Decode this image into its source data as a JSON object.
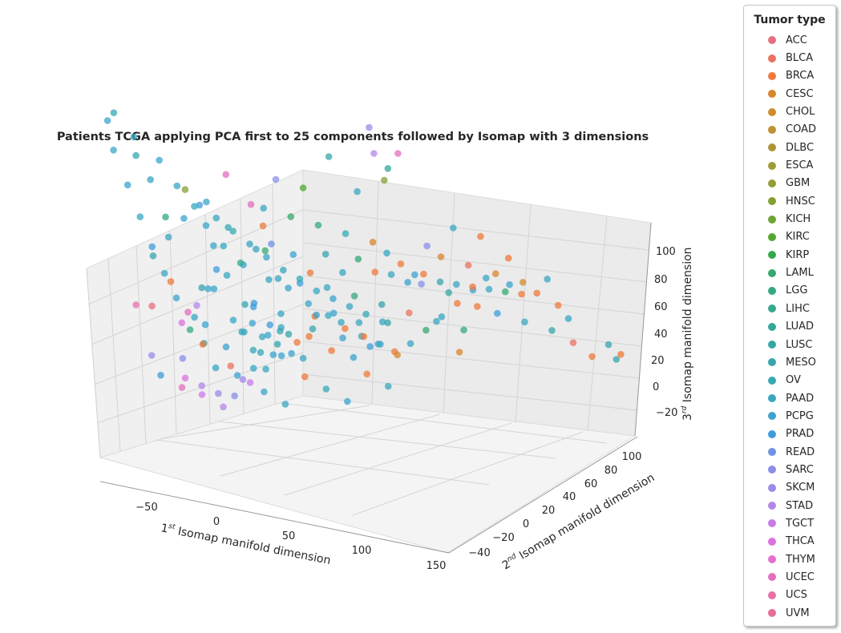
{
  "chart_data": {
    "type": "scatter",
    "projection": "3d",
    "title": "Patients TCGA applying PCA first to 25 components followed by Isomap with 3 dimensions",
    "xlabel": {
      "prefix": "1",
      "sup": "st",
      "rest": " Isomap manifold dimension"
    },
    "ylabel": {
      "prefix": "2",
      "sup": "nd",
      "rest": " Isomap manifold dimension"
    },
    "zlabel": {
      "prefix": "3",
      "sup": "rd",
      "rest": " Isomap manifold dimension"
    },
    "x_ticks": [
      "−50",
      "0",
      "50",
      "100",
      "150"
    ],
    "y_ticks": [
      "−40",
      "−20",
      "0",
      "20",
      "40",
      "60",
      "80",
      "100"
    ],
    "z_ticks": [
      "−20",
      "0",
      "20",
      "40",
      "60",
      "80",
      "100"
    ],
    "xlim": [
      -80,
      150
    ],
    "ylim": [
      -45,
      110
    ],
    "zlim": [
      -30,
      110
    ],
    "legend": {
      "title": "Tumor type",
      "entries": [
        "ACC",
        "BLCA",
        "BRCA",
        "CESC",
        "CHOL",
        "COAD",
        "DLBC",
        "ESCA",
        "GBM",
        "HNSC",
        "KICH",
        "KIRC",
        "KIRP",
        "LAML",
        "LGG",
        "LIHC",
        "LUAD",
        "LUSC",
        "MESO",
        "OV",
        "PAAD",
        "PCPG",
        "PRAD",
        "READ",
        "SARC",
        "SKCM",
        "STAD",
        "TGCT",
        "THCA",
        "THYM",
        "UCEC",
        "UCS",
        "UVM"
      ]
    },
    "colors": [
      "#e8707e",
      "#eb735f",
      "#ef7a3a",
      "#d9862f",
      "#d08c2f",
      "#bf9133",
      "#b09534",
      "#a19d36",
      "#949d33",
      "#84a032",
      "#6fa434",
      "#52a82f",
      "#35a84d",
      "#35a96f",
      "#34a97f",
      "#34a98f",
      "#33a79a",
      "#35a8a4",
      "#37a6ad",
      "#37a9b6",
      "#39a7c2",
      "#3ba4cf",
      "#3e9edc",
      "#6d92e5",
      "#8a8fe9",
      "#9e8aea",
      "#b487e9",
      "#cb7be8",
      "#dc72df",
      "#e36fd0",
      "#e66ebe",
      "#e86ea8",
      "#e76f96"
    ],
    "points": [
      [
        -62,
        -20,
        10,
        0
      ],
      [
        -50,
        -18,
        20,
        2
      ],
      [
        -45,
        -10,
        0,
        14
      ],
      [
        -40,
        -5,
        15,
        18
      ],
      [
        -35,
        0,
        30,
        20
      ],
      [
        -30,
        -15,
        5,
        21
      ],
      [
        -25,
        -10,
        25,
        22
      ],
      [
        -20,
        -5,
        40,
        19
      ],
      [
        -15,
        0,
        10,
        18
      ],
      [
        -10,
        5,
        30,
        20
      ],
      [
        -5,
        -20,
        -10,
        21
      ],
      [
        0,
        -10,
        15,
        22
      ],
      [
        5,
        0,
        35,
        23
      ],
      [
        10,
        5,
        0,
        18
      ],
      [
        15,
        10,
        20,
        19
      ],
      [
        -55,
        -25,
        60,
        20
      ],
      [
        -60,
        -30,
        70,
        18
      ],
      [
        -50,
        -20,
        45,
        14
      ],
      [
        -40,
        -15,
        55,
        9
      ],
      [
        -30,
        -10,
        50,
        20
      ],
      [
        -20,
        -5,
        60,
        30
      ],
      [
        -10,
        -30,
        25,
        21
      ],
      [
        -5,
        -25,
        -5,
        1
      ],
      [
        -15,
        -35,
        5,
        2
      ],
      [
        -25,
        -40,
        0,
        24
      ],
      [
        -35,
        -30,
        -15,
        30
      ],
      [
        -45,
        -35,
        -10,
        22
      ],
      [
        -55,
        -30,
        -5,
        25
      ],
      [
        -60,
        -35,
        15,
        31
      ],
      [
        20,
        15,
        5,
        2
      ],
      [
        25,
        20,
        15,
        20
      ],
      [
        30,
        25,
        -5,
        21
      ],
      [
        35,
        30,
        10,
        14
      ],
      [
        40,
        35,
        -10,
        22
      ],
      [
        45,
        40,
        5,
        18
      ],
      [
        50,
        45,
        -15,
        3
      ],
      [
        55,
        50,
        0,
        1
      ],
      [
        60,
        55,
        10,
        24
      ],
      [
        65,
        60,
        -5,
        20
      ],
      [
        70,
        65,
        5,
        17
      ],
      [
        75,
        70,
        -10,
        14
      ],
      [
        80,
        60,
        -15,
        3
      ],
      [
        85,
        70,
        0,
        2
      ],
      [
        90,
        80,
        -5,
        22
      ],
      [
        95,
        85,
        5,
        21
      ],
      [
        100,
        90,
        -10,
        20
      ],
      [
        110,
        100,
        -15,
        18
      ],
      [
        120,
        105,
        -20,
        1
      ],
      [
        130,
        108,
        -25,
        2
      ],
      [
        140,
        110,
        -20,
        18
      ],
      [
        145,
        110,
        -25,
        18
      ],
      [
        150,
        108,
        -22,
        2
      ],
      [
        5,
        -5,
        50,
        20
      ],
      [
        10,
        0,
        60,
        24
      ],
      [
        15,
        5,
        45,
        13
      ],
      [
        20,
        10,
        55,
        11
      ],
      [
        25,
        15,
        40,
        14
      ],
      [
        30,
        20,
        65,
        18
      ],
      [
        35,
        25,
        35,
        19
      ],
      [
        40,
        30,
        50,
        20
      ],
      [
        45,
        35,
        30,
        3
      ],
      [
        50,
        40,
        25,
        20
      ],
      [
        55,
        45,
        20,
        2
      ],
      [
        60,
        50,
        15,
        21
      ],
      [
        65,
        55,
        25,
        24
      ],
      [
        70,
        60,
        20,
        3
      ],
      [
        75,
        65,
        30,
        20
      ],
      [
        80,
        70,
        15,
        1
      ],
      [
        85,
        75,
        25,
        2
      ],
      [
        90,
        80,
        10,
        3
      ],
      [
        95,
        85,
        15,
        2
      ],
      [
        100,
        90,
        5,
        4
      ],
      [
        105,
        95,
        0,
        2
      ],
      [
        110,
        98,
        5,
        20
      ],
      [
        115,
        100,
        -5,
        2
      ],
      [
        120,
        102,
        -10,
        20
      ],
      [
        -30,
        -20,
        -20,
        27
      ],
      [
        -20,
        -15,
        -25,
        26
      ],
      [
        -10,
        -10,
        -15,
        25
      ],
      [
        0,
        -5,
        -20,
        21
      ],
      [
        10,
        0,
        -25,
        20
      ],
      [
        20,
        5,
        -15,
        2
      ],
      [
        30,
        10,
        -20,
        19
      ],
      [
        40,
        15,
        -25,
        21
      ],
      [
        50,
        20,
        -15,
        2
      ],
      [
        60,
        25,
        -20,
        20
      ],
      [
        -5,
        -15,
        5,
        20
      ],
      [
        0,
        -12,
        8,
        21
      ],
      [
        3,
        -8,
        2,
        20
      ],
      [
        -2,
        -10,
        -3,
        19
      ],
      [
        6,
        -5,
        6,
        22
      ],
      [
        8,
        -2,
        -2,
        18
      ],
      [
        -8,
        -18,
        10,
        20
      ],
      [
        -12,
        -20,
        0,
        21
      ],
      [
        2,
        -15,
        -8,
        20
      ],
      [
        12,
        -4,
        4,
        19
      ],
      [
        14,
        2,
        -6,
        21
      ],
      [
        -4,
        -6,
        12,
        22
      ],
      [
        5,
        5,
        2,
        20
      ],
      [
        0,
        0,
        0,
        21
      ],
      [
        -3,
        -3,
        -6,
        19
      ],
      [
        7,
        3,
        8,
        20
      ],
      [
        10,
        -8,
        -4,
        21
      ],
      [
        -6,
        -12,
        4,
        18
      ],
      [
        15,
        10,
        -10,
        20
      ],
      [
        18,
        12,
        -2,
        2
      ],
      [
        22,
        14,
        6,
        21
      ],
      [
        -18,
        -22,
        -8,
        20
      ],
      [
        -22,
        -26,
        2,
        19
      ],
      [
        -26,
        -28,
        12,
        20
      ],
      [
        28,
        18,
        -8,
        2
      ],
      [
        32,
        22,
        2,
        20
      ],
      [
        36,
        26,
        -12,
        21
      ],
      [
        42,
        28,
        -4,
        2
      ],
      [
        48,
        34,
        -8,
        20
      ],
      [
        52,
        36,
        0,
        18
      ],
      [
        -38,
        -28,
        18,
        21
      ],
      [
        -42,
        -32,
        28,
        20
      ],
      [
        -48,
        -34,
        38,
        22
      ],
      [
        -52,
        -38,
        50,
        20
      ],
      [
        -58,
        -40,
        62,
        21
      ],
      [
        -65,
        -42,
        75,
        20
      ],
      [
        -70,
        -40,
        85,
        21
      ],
      [
        -62,
        -44,
        90,
        19
      ],
      [
        -54,
        -38,
        80,
        20
      ],
      [
        -44,
        -30,
        70,
        21
      ],
      [
        -36,
        -26,
        60,
        20
      ],
      [
        -28,
        -22,
        52,
        19
      ],
      [
        -24,
        -18,
        44,
        21
      ],
      [
        -16,
        -14,
        36,
        20
      ],
      [
        -8,
        -8,
        28,
        21
      ],
      [
        4,
        -2,
        22,
        20
      ],
      [
        12,
        4,
        18,
        21
      ],
      [
        22,
        8,
        12,
        20
      ],
      [
        34,
        14,
        8,
        21
      ],
      [
        46,
        20,
        4,
        20
      ],
      [
        38,
        44,
        70,
        25
      ],
      [
        44,
        40,
        62,
        26
      ],
      [
        48,
        46,
        55,
        16
      ],
      [
        52,
        50,
        60,
        30
      ],
      [
        40,
        52,
        48,
        9
      ],
      [
        18,
        -30,
        60,
        30
      ],
      [
        24,
        -28,
        52,
        2
      ],
      [
        30,
        -34,
        45,
        13
      ],
      [
        16,
        -38,
        40,
        15
      ],
      [
        8,
        -40,
        35,
        20
      ],
      [
        -2,
        -44,
        30,
        21
      ],
      [
        -12,
        -42,
        22,
        26
      ],
      [
        -20,
        -40,
        18,
        30
      ],
      [
        -28,
        -36,
        12,
        28
      ],
      [
        26,
        -20,
        30,
        20
      ],
      [
        32,
        -14,
        38,
        21
      ],
      [
        38,
        -8,
        30,
        2
      ],
      [
        44,
        -2,
        36,
        18
      ],
      [
        50,
        4,
        28,
        20
      ],
      [
        56,
        10,
        32,
        13
      ],
      [
        62,
        16,
        26,
        2
      ],
      [
        68,
        22,
        24,
        20
      ],
      [
        74,
        28,
        20,
        21
      ],
      [
        80,
        34,
        22,
        2
      ],
      [
        86,
        40,
        18,
        18
      ],
      [
        92,
        46,
        16,
        20
      ],
      [
        98,
        52,
        14,
        2
      ],
      [
        104,
        58,
        12,
        20
      ],
      [
        110,
        64,
        10,
        13
      ],
      [
        116,
        70,
        8,
        2
      ],
      [
        -48,
        -12,
        -18,
        28
      ],
      [
        -42,
        -6,
        -22,
        26
      ],
      [
        -36,
        0,
        -26,
        25
      ],
      [
        -30,
        6,
        -28,
        24
      ],
      [
        -24,
        12,
        -24,
        27
      ],
      [
        -18,
        18,
        -20,
        20
      ],
      [
        -12,
        24,
        -16,
        21
      ],
      [
        -6,
        30,
        -12,
        2
      ],
      [
        0,
        36,
        -8,
        18
      ],
      [
        6,
        42,
        -4,
        20
      ],
      [
        12,
        48,
        -10,
        2
      ],
      [
        18,
        54,
        -14,
        20
      ],
      [
        24,
        60,
        -18,
        21
      ],
      [
        30,
        66,
        -22,
        2
      ],
      [
        36,
        72,
        -20,
        20
      ],
      [
        42,
        78,
        -16,
        13
      ],
      [
        48,
        84,
        -12,
        20
      ],
      [
        54,
        90,
        -8,
        2
      ],
      [
        60,
        96,
        -4,
        21
      ],
      [
        66,
        100,
        0,
        20
      ],
      [
        -58,
        -22,
        30,
        18
      ],
      [
        -52,
        -16,
        36,
        20
      ],
      [
        -46,
        -10,
        42,
        21
      ],
      [
        -40,
        -4,
        46,
        22
      ],
      [
        -34,
        2,
        40,
        20
      ],
      [
        -28,
        8,
        34,
        19
      ],
      [
        -22,
        14,
        28,
        20
      ],
      [
        -16,
        20,
        22,
        21
      ],
      [
        -10,
        26,
        16,
        20
      ],
      [
        -4,
        32,
        10,
        22
      ],
      [
        2,
        38,
        6,
        20
      ],
      [
        8,
        44,
        2,
        21
      ],
      [
        14,
        50,
        -2,
        20
      ],
      [
        20,
        56,
        -6,
        19
      ],
      [
        26,
        62,
        -10,
        20
      ]
    ]
  }
}
